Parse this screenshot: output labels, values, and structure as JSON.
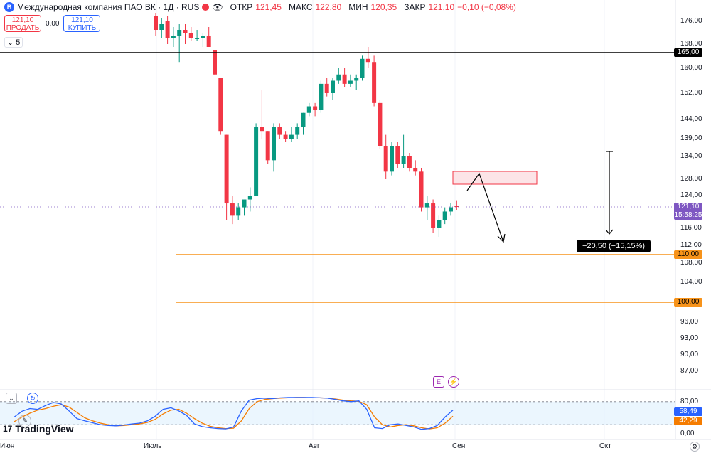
{
  "header": {
    "symbol": "Международная компания ПАО ВК · 1Д · RUS",
    "open_label": "ОТКР",
    "open": "121,45",
    "high_label": "МАКС",
    "high": "122,80",
    "low_label": "МИН",
    "low": "120,35",
    "close_label": "ЗАКР",
    "close": "121,10",
    "change": "−0,10 (−0,08%)"
  },
  "trade": {
    "sell_price": "121,10",
    "sell_label": "ПРОДАТЬ",
    "spread": "0,00",
    "buy_price": "121,10",
    "buy_label": "КУПИТЬ"
  },
  "indicators_count": "5",
  "price_axis": [
    "176,00",
    "168,00",
    "160,00",
    "152,00",
    "144,00",
    "139,00",
    "134,00",
    "128,00",
    "124,00",
    "116,00",
    "112,00",
    "108,00",
    "104,00",
    "96,00",
    "93,00",
    "90,00",
    "87,00"
  ],
  "osc_axis": [
    "80,00",
    "0,00"
  ],
  "tags": {
    "level_165": "165,00",
    "current_price": "121,10",
    "countdown": "15:58:25",
    "level_110": "110,00",
    "level_100": "100,00",
    "osc_k": "58,49",
    "osc_d": "42,29"
  },
  "measure": "−20,50 (−15,15%)",
  "time_axis": [
    "Июн",
    "Июль",
    "Авг",
    "Сен",
    "Окт"
  ],
  "brand": "TradingView",
  "colors": {
    "up": "#089981",
    "down": "#f23645",
    "level": "#f7931a",
    "current": "#7e57c2",
    "osc_k": "#2962ff",
    "osc_d": "#f57c00"
  },
  "chart_data": {
    "type": "candlestick",
    "ylim": [
      84,
      182
    ],
    "candles": [
      {
        "o": 178,
        "h": 179,
        "l": 171,
        "c": 173
      },
      {
        "o": 173,
        "h": 177,
        "l": 170,
        "c": 175
      },
      {
        "o": 176,
        "h": 178,
        "l": 168,
        "c": 170
      },
      {
        "o": 170,
        "h": 174,
        "l": 167,
        "c": 171
      },
      {
        "o": 171,
        "h": 175,
        "l": 162,
        "c": 173
      },
      {
        "o": 173,
        "h": 175,
        "l": 168,
        "c": 172
      },
      {
        "o": 172,
        "h": 174,
        "l": 169,
        "c": 170
      },
      {
        "o": 170,
        "h": 173,
        "l": 169,
        "c": 170
      },
      {
        "o": 170,
        "h": 172,
        "l": 167,
        "c": 171
      },
      {
        "o": 171,
        "h": 174,
        "l": 167,
        "c": 167
      },
      {
        "o": 166,
        "h": 166,
        "l": 158,
        "c": 158
      },
      {
        "o": 157,
        "h": 157,
        "l": 140,
        "c": 141
      },
      {
        "o": 140,
        "h": 140,
        "l": 118,
        "c": 122
      },
      {
        "o": 122,
        "h": 124,
        "l": 117,
        "c": 119
      },
      {
        "o": 119,
        "h": 122,
        "l": 118,
        "c": 121
      },
      {
        "o": 121,
        "h": 123,
        "l": 119,
        "c": 123
      },
      {
        "o": 123,
        "h": 126,
        "l": 120,
        "c": 124
      },
      {
        "o": 124,
        "h": 143,
        "l": 124,
        "c": 142
      },
      {
        "o": 142,
        "h": 153,
        "l": 139,
        "c": 141
      },
      {
        "o": 141,
        "h": 141,
        "l": 132,
        "c": 133
      },
      {
        "o": 133,
        "h": 143,
        "l": 130,
        "c": 142
      },
      {
        "o": 142,
        "h": 143,
        "l": 139,
        "c": 140
      },
      {
        "o": 140,
        "h": 141,
        "l": 138,
        "c": 139
      },
      {
        "o": 139,
        "h": 142,
        "l": 138,
        "c": 140
      },
      {
        "o": 140,
        "h": 143,
        "l": 139,
        "c": 142
      },
      {
        "o": 142,
        "h": 146,
        "l": 140,
        "c": 146
      },
      {
        "o": 146,
        "h": 149,
        "l": 145,
        "c": 148
      },
      {
        "o": 148,
        "h": 149,
        "l": 145,
        "c": 147
      },
      {
        "o": 147,
        "h": 156,
        "l": 146,
        "c": 155
      },
      {
        "o": 155,
        "h": 157,
        "l": 151,
        "c": 152
      },
      {
        "o": 152,
        "h": 157,
        "l": 150,
        "c": 156
      },
      {
        "o": 156,
        "h": 160,
        "l": 155,
        "c": 158
      },
      {
        "o": 158,
        "h": 160,
        "l": 154,
        "c": 155
      },
      {
        "o": 155,
        "h": 158,
        "l": 154,
        "c": 156
      },
      {
        "o": 156,
        "h": 158,
        "l": 153,
        "c": 157
      },
      {
        "o": 157,
        "h": 164,
        "l": 156,
        "c": 163
      },
      {
        "o": 163,
        "h": 167,
        "l": 160,
        "c": 162
      },
      {
        "o": 162,
        "h": 164,
        "l": 148,
        "c": 149
      },
      {
        "o": 149,
        "h": 150,
        "l": 136,
        "c": 137
      },
      {
        "o": 137,
        "h": 140,
        "l": 128,
        "c": 130
      },
      {
        "o": 130,
        "h": 138,
        "l": 129,
        "c": 137
      },
      {
        "o": 137,
        "h": 138,
        "l": 131,
        "c": 132
      },
      {
        "o": 132,
        "h": 140,
        "l": 131,
        "c": 134
      },
      {
        "o": 134,
        "h": 135,
        "l": 130,
        "c": 131
      },
      {
        "o": 131,
        "h": 133,
        "l": 129,
        "c": 130
      },
      {
        "o": 130,
        "h": 131,
        "l": 120,
        "c": 121
      },
      {
        "o": 121,
        "h": 124,
        "l": 118,
        "c": 122
      },
      {
        "o": 122,
        "h": 123,
        "l": 115,
        "c": 116
      },
      {
        "o": 116,
        "h": 119,
        "l": 114,
        "c": 118
      },
      {
        "o": 118,
        "h": 121,
        "l": 117,
        "c": 120
      },
      {
        "o": 120,
        "h": 122,
        "l": 119,
        "c": 121
      },
      {
        "o": 121.45,
        "h": 122.8,
        "l": 120.35,
        "c": 121.1
      }
    ],
    "levels": [
      165,
      110,
      100
    ],
    "oscillator": {
      "ylim": [
        0,
        100
      ],
      "bands": [
        20,
        80
      ],
      "k": [
        40,
        55,
        62,
        60,
        70,
        78,
        74,
        56,
        36,
        30,
        25,
        20,
        18,
        17,
        19,
        22,
        24,
        30,
        42,
        60,
        64,
        56,
        44,
        22,
        15,
        12,
        10,
        9,
        14,
        56,
        84,
        88,
        89,
        88,
        90,
        91,
        91,
        91,
        91,
        90,
        89,
        86,
        82,
        80,
        82,
        60,
        12,
        10,
        20,
        22,
        18,
        14,
        8,
        10,
        18,
        40,
        58
      ],
      "d": [
        28,
        40,
        50,
        58,
        62,
        68,
        72,
        66,
        52,
        38,
        30,
        24,
        20,
        17,
        18,
        20,
        22,
        26,
        34,
        48,
        58,
        60,
        50,
        36,
        24,
        16,
        12,
        10,
        11,
        30,
        62,
        80,
        86,
        88,
        89,
        90,
        91,
        91,
        90,
        90,
        89,
        87,
        84,
        82,
        81,
        72,
        40,
        20,
        14,
        18,
        20,
        17,
        12,
        9,
        12,
        24,
        42
      ]
    }
  }
}
